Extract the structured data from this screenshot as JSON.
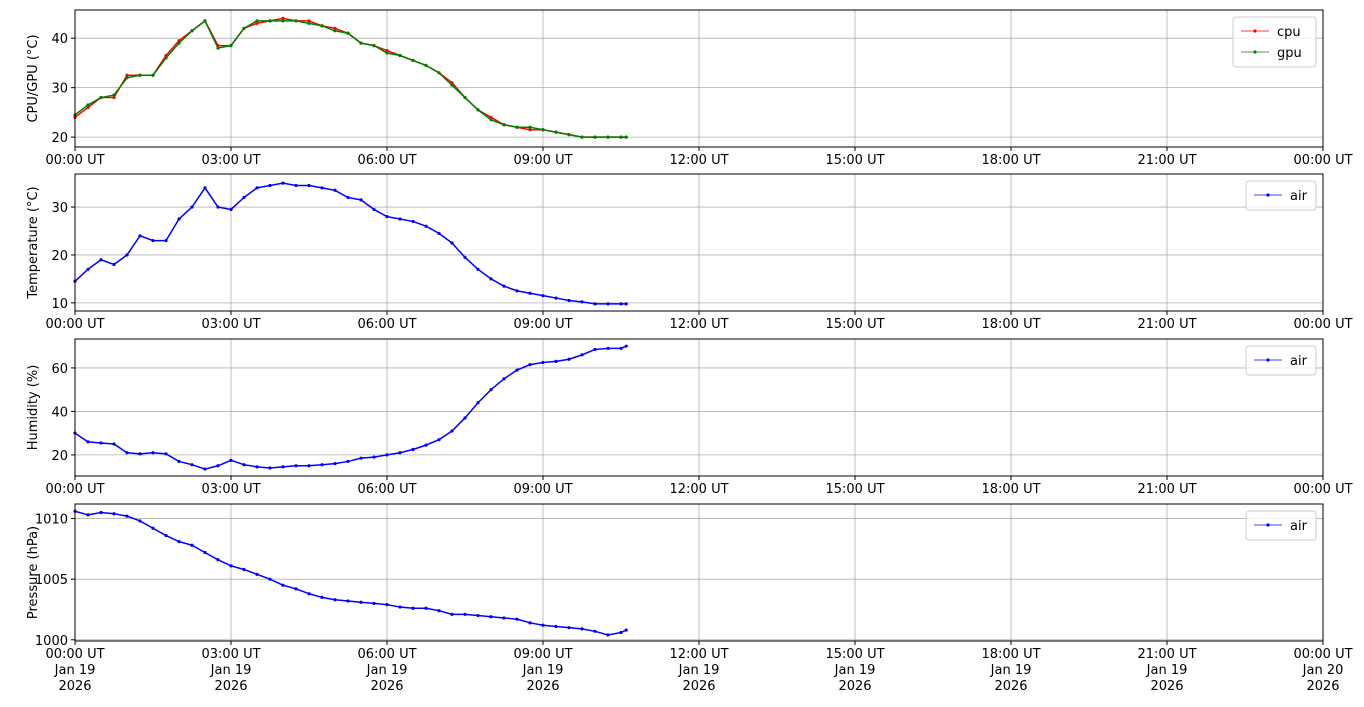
{
  "chart_data": [
    {
      "type": "line",
      "ylabel": "CPU/GPU (°C)",
      "legend": "upper right",
      "grid": true,
      "x": [
        0,
        0.25,
        0.5,
        0.75,
        1,
        1.25,
        1.5,
        1.75,
        2,
        2.25,
        2.5,
        2.75,
        3,
        3.25,
        3.5,
        3.75,
        4,
        4.25,
        4.5,
        4.75,
        5,
        5.25,
        5.5,
        5.75,
        6,
        6.25,
        6.5,
        6.75,
        7,
        7.25,
        7.5,
        7.75,
        8,
        8.25,
        8.5,
        8.75,
        9,
        9.25,
        9.5,
        9.75,
        10,
        10.25,
        10.5,
        10.6
      ],
      "series": [
        {
          "name": "cpu",
          "color": "#ff0000",
          "values": [
            24,
            26,
            28,
            28,
            32.5,
            32.5,
            32.5,
            36.5,
            39.5,
            41.5,
            43.5,
            38.5,
            38.5,
            42,
            43,
            43.5,
            44,
            43.5,
            43.5,
            42.5,
            42,
            41,
            39,
            38.5,
            37.5,
            36.5,
            35.5,
            34.5,
            33,
            31,
            28,
            25.5,
            24,
            22.5,
            22,
            21.5,
            21.5,
            21,
            20.5,
            20,
            20,
            20,
            20,
            20
          ]
        },
        {
          "name": "gpu",
          "color": "#008000",
          "values": [
            24.5,
            26.5,
            28,
            28.5,
            32,
            32.5,
            32.5,
            36,
            39,
            41.5,
            43.5,
            38,
            38.5,
            42,
            43.5,
            43.5,
            43.5,
            43.5,
            43,
            42.5,
            41.5,
            41,
            39,
            38.5,
            37,
            36.5,
            35.5,
            34.5,
            33,
            30.5,
            28,
            25.5,
            23.5,
            22.5,
            22,
            22,
            21.5,
            21,
            20.5,
            20,
            20,
            20,
            20,
            20
          ]
        }
      ],
      "xlim": [
        0,
        24
      ],
      "xticks": [
        {
          "value": 0,
          "label": "00:00 UT"
        },
        {
          "value": 3,
          "label": "03:00 UT"
        },
        {
          "value": 6,
          "label": "06:00 UT"
        },
        {
          "value": 9,
          "label": "09:00 UT"
        },
        {
          "value": 12,
          "label": "12:00 UT"
        },
        {
          "value": 15,
          "label": "15:00 UT"
        },
        {
          "value": 18,
          "label": "18:00 UT"
        },
        {
          "value": 21,
          "label": "21:00 UT"
        },
        {
          "value": 24,
          "label": "00:00 UT"
        }
      ],
      "ylim": [
        18,
        45.7
      ],
      "yticks": [
        20,
        30,
        40
      ]
    },
    {
      "type": "line",
      "ylabel": "Temperature (°C)",
      "legend": "upper right",
      "grid": true,
      "x": [
        0,
        0.25,
        0.5,
        0.75,
        1,
        1.25,
        1.5,
        1.75,
        2,
        2.25,
        2.5,
        2.75,
        3,
        3.25,
        3.5,
        3.75,
        4,
        4.25,
        4.5,
        4.75,
        5,
        5.25,
        5.5,
        5.75,
        6,
        6.25,
        6.5,
        6.75,
        7,
        7.25,
        7.5,
        7.75,
        8,
        8.25,
        8.5,
        8.75,
        9,
        9.25,
        9.5,
        9.75,
        10,
        10.25,
        10.5,
        10.6
      ],
      "series": [
        {
          "name": "air",
          "color": "#0000ff",
          "values": [
            14.5,
            17,
            19,
            18,
            20,
            24,
            23,
            23,
            27.5,
            30,
            34,
            30,
            29.5,
            32,
            34,
            34.5,
            35,
            34.5,
            34.5,
            34,
            33.5,
            32,
            31.5,
            29.5,
            28,
            27.5,
            27,
            26,
            24.5,
            22.5,
            19.5,
            17,
            15,
            13.5,
            12.5,
            12,
            11.5,
            11,
            10.5,
            10.2,
            9.8,
            9.8,
            9.8,
            9.8
          ]
        }
      ],
      "xlim": [
        0,
        24
      ],
      "xticks": [
        {
          "value": 0,
          "label": "00:00 UT"
        },
        {
          "value": 3,
          "label": "03:00 UT"
        },
        {
          "value": 6,
          "label": "06:00 UT"
        },
        {
          "value": 9,
          "label": "09:00 UT"
        },
        {
          "value": 12,
          "label": "12:00 UT"
        },
        {
          "value": 15,
          "label": "15:00 UT"
        },
        {
          "value": 18,
          "label": "18:00 UT"
        },
        {
          "value": 21,
          "label": "21:00 UT"
        },
        {
          "value": 24,
          "label": "00:00 UT"
        }
      ],
      "ylim": [
        8.3,
        36.9
      ],
      "yticks": [
        10,
        20,
        30
      ]
    },
    {
      "type": "line",
      "ylabel": "Humidity (%)",
      "legend": "upper right",
      "grid": true,
      "x": [
        0,
        0.25,
        0.5,
        0.75,
        1,
        1.25,
        1.5,
        1.75,
        2,
        2.25,
        2.5,
        2.75,
        3,
        3.25,
        3.5,
        3.75,
        4,
        4.25,
        4.5,
        4.75,
        5,
        5.25,
        5.5,
        5.75,
        6,
        6.25,
        6.5,
        6.75,
        7,
        7.25,
        7.5,
        7.75,
        8,
        8.25,
        8.5,
        8.75,
        9,
        9.25,
        9.5,
        9.75,
        10,
        10.25,
        10.5,
        10.6
      ],
      "series": [
        {
          "name": "air",
          "color": "#0000ff",
          "values": [
            30,
            26,
            25.5,
            25,
            21,
            20.5,
            21,
            20.5,
            17,
            15.5,
            13.5,
            15,
            17.5,
            15.5,
            14.5,
            14,
            14.5,
            15,
            15,
            15.5,
            16,
            17,
            18.5,
            19,
            20,
            21,
            22.5,
            24.5,
            27,
            31,
            37,
            44,
            50,
            55,
            59,
            61.5,
            62.5,
            63,
            64,
            66,
            68.5,
            69,
            69,
            70
          ]
        }
      ],
      "xlim": [
        0,
        24
      ],
      "xticks": [
        {
          "value": 0,
          "label": "00:00 UT"
        },
        {
          "value": 3,
          "label": "03:00 UT"
        },
        {
          "value": 6,
          "label": "06:00 UT"
        },
        {
          "value": 9,
          "label": "09:00 UT"
        },
        {
          "value": 12,
          "label": "12:00 UT"
        },
        {
          "value": 15,
          "label": "15:00 UT"
        },
        {
          "value": 18,
          "label": "18:00 UT"
        },
        {
          "value": 21,
          "label": "21:00 UT"
        },
        {
          "value": 24,
          "label": "00:00 UT"
        }
      ],
      "ylim": [
        10.3,
        73.3
      ],
      "yticks": [
        20,
        40,
        60
      ]
    },
    {
      "type": "line",
      "ylabel": "Pressure (hPa)",
      "legend": "upper right",
      "grid": true,
      "x": [
        0,
        0.25,
        0.5,
        0.75,
        1,
        1.25,
        1.5,
        1.75,
        2,
        2.25,
        2.5,
        2.75,
        3,
        3.25,
        3.5,
        3.75,
        4,
        4.25,
        4.5,
        4.75,
        5,
        5.25,
        5.5,
        5.75,
        6,
        6.25,
        6.5,
        6.75,
        7,
        7.25,
        7.5,
        7.75,
        8,
        8.25,
        8.5,
        8.75,
        9,
        9.25,
        9.5,
        9.75,
        10,
        10.25,
        10.5,
        10.6
      ],
      "series": [
        {
          "name": "air",
          "color": "#0000ff",
          "values": [
            1010.6,
            1010.3,
            1010.5,
            1010.4,
            1010.2,
            1009.8,
            1009.2,
            1008.6,
            1008.1,
            1007.8,
            1007.2,
            1006.6,
            1006.1,
            1005.8,
            1005.4,
            1005.0,
            1004.5,
            1004.2,
            1003.8,
            1003.5,
            1003.3,
            1003.2,
            1003.1,
            1003.0,
            1002.9,
            1002.7,
            1002.6,
            1002.6,
            1002.4,
            1002.1,
            1002.1,
            1002.0,
            1001.9,
            1001.8,
            1001.7,
            1001.4,
            1001.2,
            1001.1,
            1001.0,
            1000.9,
            1000.7,
            1000.4,
            1000.6,
            1000.8
          ]
        }
      ],
      "xlim": [
        0,
        24
      ],
      "xticks": [
        {
          "value": 0,
          "label": "00:00 UT\nJan 19\n2026"
        },
        {
          "value": 3,
          "label": "03:00 UT\nJan 19\n2026"
        },
        {
          "value": 6,
          "label": "06:00 UT\nJan 19\n2026"
        },
        {
          "value": 9,
          "label": "09:00 UT\nJan 19\n2026"
        },
        {
          "value": 12,
          "label": "12:00 UT\nJan 19\n2026"
        },
        {
          "value": 15,
          "label": "15:00 UT\nJan 19\n2026"
        },
        {
          "value": 18,
          "label": "18:00 UT\nJan 19\n2026"
        },
        {
          "value": 21,
          "label": "21:00 UT\nJan 19\n2026"
        },
        {
          "value": 24,
          "label": "00:00 UT\nJan 20\n2026"
        }
      ],
      "ylim": [
        999.9,
        1011.2
      ],
      "yticks": [
        1000,
        1005,
        1010
      ]
    }
  ]
}
